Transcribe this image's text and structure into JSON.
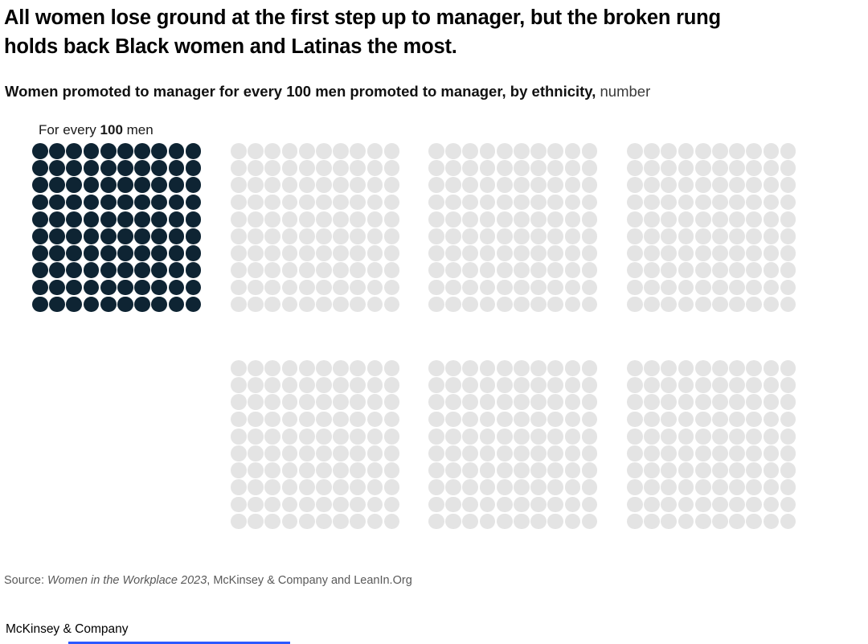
{
  "header": {
    "title_line1": "All women lose ground at the first step up to manager, but the broken rung",
    "title_line2": "holds back Black women and Latinas the most.",
    "subtitle_bold": "Women promoted to manager for every 100 men promoted to manager, by ethnicity,",
    "subtitle_regular": " number"
  },
  "chart_data": {
    "type": "waffle",
    "title": "Women promoted to manager for every 100 men promoted to manager, by ethnicity",
    "unit": "number",
    "grid_rows": 10,
    "grid_cols": 10,
    "dots_per_grid": 100,
    "reference_label": {
      "prefix": "For every ",
      "value": "100",
      "suffix": " men"
    },
    "colors": {
      "filled": "#0e2433",
      "empty": "#e4e4e4"
    },
    "legend_position": "none",
    "grid_lines": false,
    "grids": [
      {
        "name": "reference-100-men",
        "row": 1,
        "col": 1,
        "filled": 100
      },
      {
        "name": "placeholder-1",
        "row": 1,
        "col": 2,
        "filled": 0
      },
      {
        "name": "placeholder-2",
        "row": 1,
        "col": 3,
        "filled": 0
      },
      {
        "name": "placeholder-3",
        "row": 1,
        "col": 4,
        "filled": 0
      },
      {
        "name": "placeholder-4",
        "row": 2,
        "col": 2,
        "filled": 0
      },
      {
        "name": "placeholder-5",
        "row": 2,
        "col": 3,
        "filled": 0
      },
      {
        "name": "placeholder-6",
        "row": 2,
        "col": 4,
        "filled": 0
      }
    ]
  },
  "source": {
    "prefix": "Source: ",
    "publication": "Women in the Workplace 2023",
    "suffix": ", McKinsey & Company and LeanIn.Org"
  },
  "footer": {
    "brand": "McKinsey & Company",
    "progress_color": "#2b59ff"
  }
}
